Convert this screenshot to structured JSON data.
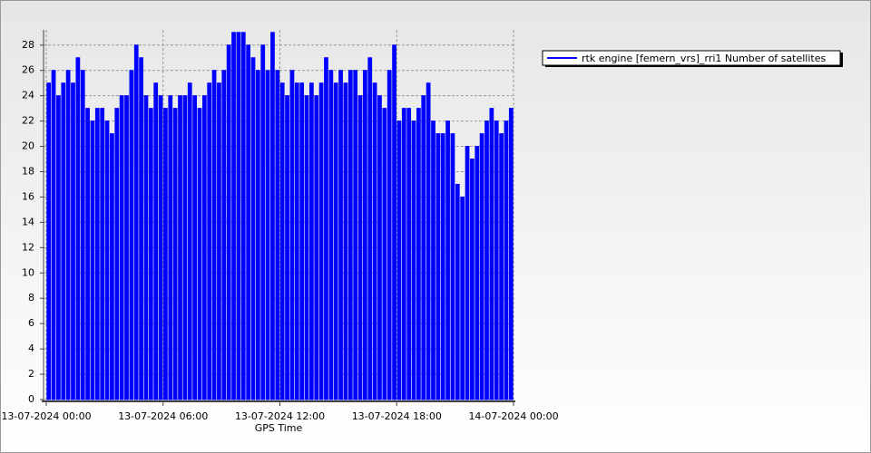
{
  "chart_data": {
    "type": "bar",
    "x_label": "GPS Time",
    "series": [
      {
        "name": "rtk engine [femern_vrs]_rri1 Number of satellites",
        "color": "#0000ff",
        "values": [
          25,
          26,
          24,
          25,
          26,
          25,
          27,
          26,
          23,
          22,
          23,
          23,
          22,
          21,
          23,
          24,
          24,
          26,
          28,
          27,
          24,
          23,
          25,
          24,
          23,
          24,
          23,
          24,
          24,
          25,
          24,
          23,
          24,
          25,
          26,
          25,
          26,
          28,
          29,
          29,
          29,
          28,
          27,
          26,
          28,
          26,
          29,
          26,
          25,
          24,
          26,
          25,
          25,
          24,
          25,
          24,
          25,
          27,
          26,
          25,
          26,
          25,
          26,
          26,
          24,
          26,
          27,
          25,
          24,
          23,
          26,
          28,
          22,
          23,
          23,
          22,
          23,
          24,
          25,
          22,
          21,
          21,
          22,
          21,
          17,
          16,
          20,
          19,
          20,
          21,
          22,
          23,
          22,
          21,
          22,
          23
        ]
      }
    ],
    "x": [
      "13-07-2024 00:00",
      "13-07-2024 00:15",
      "13-07-2024 00:30",
      "13-07-2024 00:45",
      "13-07-2024 01:00",
      "13-07-2024 01:15",
      "13-07-2024 01:30",
      "13-07-2024 01:45",
      "13-07-2024 02:00",
      "13-07-2024 02:15",
      "13-07-2024 02:30",
      "13-07-2024 02:45",
      "13-07-2024 03:00",
      "13-07-2024 03:15",
      "13-07-2024 03:30",
      "13-07-2024 03:45",
      "13-07-2024 04:00",
      "13-07-2024 04:15",
      "13-07-2024 04:30",
      "13-07-2024 04:45",
      "13-07-2024 05:00",
      "13-07-2024 05:15",
      "13-07-2024 05:30",
      "13-07-2024 05:45",
      "13-07-2024 06:00",
      "13-07-2024 06:15",
      "13-07-2024 06:30",
      "13-07-2024 06:45",
      "13-07-2024 07:00",
      "13-07-2024 07:15",
      "13-07-2024 07:30",
      "13-07-2024 07:45",
      "13-07-2024 08:00",
      "13-07-2024 08:15",
      "13-07-2024 08:30",
      "13-07-2024 08:45",
      "13-07-2024 09:00",
      "13-07-2024 09:15",
      "13-07-2024 09:30",
      "13-07-2024 09:45",
      "13-07-2024 10:00",
      "13-07-2024 10:15",
      "13-07-2024 10:30",
      "13-07-2024 10:45",
      "13-07-2024 11:00",
      "13-07-2024 11:15",
      "13-07-2024 11:30",
      "13-07-2024 11:45",
      "13-07-2024 12:00",
      "13-07-2024 12:15",
      "13-07-2024 12:30",
      "13-07-2024 12:45",
      "13-07-2024 13:00",
      "13-07-2024 13:15",
      "13-07-2024 13:30",
      "13-07-2024 13:45",
      "13-07-2024 14:00",
      "13-07-2024 14:15",
      "13-07-2024 14:30",
      "13-07-2024 14:45",
      "13-07-2024 15:00",
      "13-07-2024 15:15",
      "13-07-2024 15:30",
      "13-07-2024 15:45",
      "13-07-2024 16:00",
      "13-07-2024 16:15",
      "13-07-2024 16:30",
      "13-07-2024 16:45",
      "13-07-2024 17:00",
      "13-07-2024 17:15",
      "13-07-2024 17:30",
      "13-07-2024 17:45",
      "13-07-2024 18:00",
      "13-07-2024 18:15",
      "13-07-2024 18:30",
      "13-07-2024 18:45",
      "13-07-2024 19:00",
      "13-07-2024 19:15",
      "13-07-2024 19:30",
      "13-07-2024 19:45",
      "13-07-2024 20:00",
      "13-07-2024 20:15",
      "13-07-2024 20:30",
      "13-07-2024 20:45",
      "13-07-2024 21:00",
      "13-07-2024 21:15",
      "13-07-2024 21:30",
      "13-07-2024 21:45",
      "13-07-2024 22:00",
      "13-07-2024 22:15",
      "13-07-2024 22:30",
      "13-07-2024 22:45",
      "13-07-2024 23:00",
      "13-07-2024 23:15",
      "13-07-2024 23:30",
      "13-07-2024 23:45"
    ],
    "xlim": [
      "13-07-2024 00:00",
      "14-07-2024 00:00"
    ],
    "xticks": [
      "13-07-2024 00:00",
      "13-07-2024 06:00",
      "13-07-2024 12:00",
      "13-07-2024 18:00",
      "14-07-2024 00:00"
    ],
    "ylim": [
      0,
      29.2
    ],
    "yticks": [
      0,
      2,
      4,
      6,
      8,
      10,
      12,
      14,
      16,
      18,
      20,
      22,
      24,
      26,
      28
    ],
    "grid": true,
    "legend": "top-right"
  }
}
